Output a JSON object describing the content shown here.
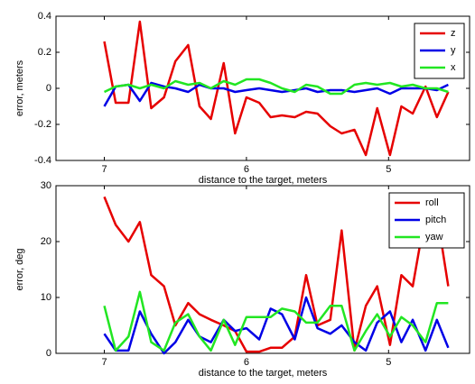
{
  "chart_data": [
    {
      "type": "line",
      "xlabel": "distance to the target, meters",
      "ylabel": "error, meters",
      "xlim": [
        7.34,
        4.43
      ],
      "xticks": [
        7,
        6,
        5
      ],
      "ylim": [
        -0.4,
        0.4
      ],
      "yticks": [
        -0.4,
        -0.2,
        0,
        0.2,
        0.4
      ],
      "legend": "upper right",
      "x": [
        7.0,
        6.92,
        6.83,
        6.75,
        6.67,
        6.58,
        6.5,
        6.41,
        6.33,
        6.25,
        6.16,
        6.08,
        6.0,
        5.91,
        5.83,
        5.75,
        5.66,
        5.58,
        5.5,
        5.41,
        5.33,
        5.24,
        5.16,
        5.08,
        4.99,
        4.91,
        4.83,
        4.74,
        4.66,
        4.58
      ],
      "series": [
        {
          "name": "z",
          "color": "#e60000",
          "values": [
            0.26,
            -0.08,
            -0.08,
            0.37,
            -0.11,
            -0.05,
            0.15,
            0.24,
            -0.1,
            -0.17,
            0.14,
            -0.25,
            -0.05,
            -0.08,
            -0.16,
            -0.15,
            -0.16,
            -0.13,
            -0.14,
            -0.21,
            -0.25,
            -0.23,
            -0.37,
            -0.11,
            -0.37,
            -0.1,
            -0.14,
            0.01,
            -0.16,
            -0.02
          ]
        },
        {
          "name": "y",
          "color": "#0000e6",
          "values": [
            -0.1,
            0.01,
            0.02,
            -0.07,
            0.03,
            0.01,
            0.0,
            -0.02,
            0.02,
            0.0,
            0.0,
            -0.02,
            -0.01,
            0.0,
            -0.01,
            -0.02,
            -0.01,
            0.0,
            -0.02,
            -0.01,
            -0.01,
            -0.02,
            -0.01,
            0.0,
            -0.03,
            0.0,
            0.0,
            0.0,
            -0.01,
            0.02
          ]
        },
        {
          "name": "x",
          "color": "#22e622",
          "values": [
            -0.02,
            0.01,
            0.02,
            0.0,
            0.02,
            0.0,
            0.04,
            0.02,
            0.03,
            0.0,
            0.04,
            0.02,
            0.05,
            0.05,
            0.03,
            0.0,
            -0.02,
            0.02,
            0.01,
            -0.03,
            -0.03,
            0.02,
            0.03,
            0.02,
            0.03,
            0.01,
            0.02,
            0.0,
            0.0,
            -0.02
          ]
        }
      ]
    },
    {
      "type": "line",
      "xlabel": "distance to the target, meters",
      "ylabel": "error, deg",
      "xlim": [
        7.34,
        4.43
      ],
      "xticks": [
        7,
        6,
        5
      ],
      "ylim": [
        0,
        30
      ],
      "yticks": [
        0,
        10,
        20,
        30
      ],
      "legend": "upper right",
      "x": [
        7.0,
        6.92,
        6.83,
        6.75,
        6.67,
        6.58,
        6.5,
        6.41,
        6.33,
        6.25,
        6.16,
        6.08,
        6.0,
        5.91,
        5.83,
        5.75,
        5.66,
        5.58,
        5.5,
        5.41,
        5.33,
        5.24,
        5.16,
        5.08,
        4.99,
        4.91,
        4.83,
        4.74,
        4.66,
        4.58
      ],
      "series": [
        {
          "name": "roll",
          "color": "#e60000",
          "values": [
            28,
            23,
            20,
            23.5,
            14,
            12,
            5,
            9,
            7,
            6,
            5,
            4,
            0.3,
            0.3,
            1,
            1,
            3,
            14,
            5,
            6,
            22,
            0.5,
            8.5,
            12,
            1.5,
            14,
            12,
            25,
            25,
            12
          ]
        },
        {
          "name": "pitch",
          "color": "#0000e6",
          "values": [
            3.5,
            0.5,
            0.5,
            7.5,
            3.5,
            0,
            2,
            6,
            3,
            2,
            6,
            4,
            4.5,
            2.5,
            8,
            7,
            2.5,
            10,
            4.5,
            3.5,
            5,
            2,
            0.5,
            5.5,
            7.5,
            2,
            6,
            0.5,
            6,
            1
          ]
        },
        {
          "name": "yaw",
          "color": "#22e622",
          "values": [
            8.5,
            0.5,
            3,
            11,
            2,
            0.5,
            5.5,
            7,
            3,
            0.5,
            6,
            1.5,
            6.5,
            6.5,
            6.5,
            8,
            7.5,
            5.5,
            5.5,
            8.5,
            8.5,
            0.5,
            4,
            7,
            3,
            6.5,
            5,
            2,
            9,
            9
          ]
        }
      ]
    }
  ]
}
